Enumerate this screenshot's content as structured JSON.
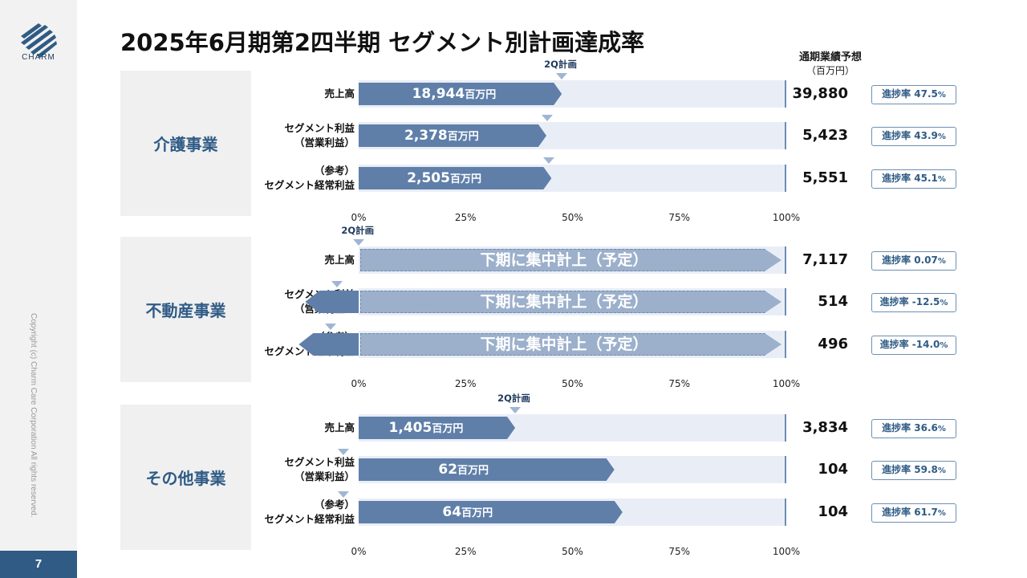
{
  "page": {
    "title": "2025年6月期第2四半期 セグメント別計画達成率",
    "logo_text": "CHARM",
    "copyright": "Copyright (c) Charm Care Corporation All rights reserved.",
    "page_number": "7"
  },
  "header": {
    "forecast_label": "通期業績予想",
    "forecast_unit": "（百万円）"
  },
  "labels": {
    "plan_marker": "2Q計画",
    "unit": "百万円",
    "deferred": "下期に集中計上（予定）",
    "progress_prefix": "進捗率",
    "percent_sign": "%"
  },
  "colors": {
    "accent": "#2f5b85",
    "bar": "#5f7fa9",
    "track": "#e9eef6",
    "plan_band": "#9cb0cb",
    "marker": "#9fb6d2",
    "sidebar": "#f2f2f2"
  },
  "chart_data": [
    {
      "type": "bar",
      "segment": "介護事業",
      "axis_ticks": [
        "0%",
        "25%",
        "50%",
        "75%",
        "100%"
      ],
      "xlim": [
        0,
        100
      ],
      "plan_pct": 47.5,
      "rows": [
        {
          "label_lines": [
            "売上高"
          ],
          "actual": "18,944",
          "progress_pct": 47.5,
          "plan_pct": 47.5,
          "forecast": "39,880",
          "progress_text": "47.5"
        },
        {
          "label_lines": [
            "セグメント利益",
            "（営業利益）"
          ],
          "actual": "2,378",
          "progress_pct": 43.9,
          "plan_pct": 44.0,
          "forecast": "5,423",
          "progress_text": "43.9"
        },
        {
          "label_lines": [
            "（参考）",
            "セグメント経常利益"
          ],
          "actual": "2,505",
          "progress_pct": 45.1,
          "plan_pct": 44.5,
          "forecast": "5,551",
          "progress_text": "45.1"
        }
      ]
    },
    {
      "type": "bar",
      "segment": "不動産事業",
      "axis_ticks": [
        "0%",
        "25%",
        "50%",
        "75%",
        "100%"
      ],
      "xlim": [
        0,
        100
      ],
      "plan_pct": 0.07,
      "rows": [
        {
          "label_lines": [
            "売上高"
          ],
          "progress_pct": 0.07,
          "plan_pct": 0.07,
          "forecast": "7,117",
          "progress_text": "0.07",
          "deferred": true
        },
        {
          "label_lines": [
            "セグメント利益",
            "（営業利益）"
          ],
          "progress_pct": -12.5,
          "plan_pct": -5.0,
          "forecast": "514",
          "progress_text": "-12.5",
          "deferred": true
        },
        {
          "label_lines": [
            "（参考）",
            "セグメント経常利益"
          ],
          "progress_pct": -14.0,
          "plan_pct": -6.5,
          "forecast": "496",
          "progress_text": "-14.0",
          "deferred": true
        }
      ]
    },
    {
      "type": "bar",
      "segment": "その他事業",
      "axis_ticks": [
        "0%",
        "25%",
        "50%",
        "75%",
        "100%"
      ],
      "xlim": [
        0,
        100
      ],
      "plan_pct": 36.6,
      "rows": [
        {
          "label_lines": [
            "売上高"
          ],
          "actual": "1,405",
          "progress_pct": 36.6,
          "plan_pct": 36.6,
          "forecast": "3,834",
          "progress_text": "36.6"
        },
        {
          "label_lines": [
            "セグメント利益",
            "（営業利益）"
          ],
          "actual": "62",
          "progress_pct": 59.8,
          "plan_pct": -3.5,
          "forecast": "104",
          "progress_text": "59.8"
        },
        {
          "label_lines": [
            "（参考）",
            "セグメント経常利益"
          ],
          "actual": "64",
          "progress_pct": 61.7,
          "plan_pct": -3.5,
          "forecast": "104",
          "progress_text": "61.7"
        }
      ]
    }
  ]
}
